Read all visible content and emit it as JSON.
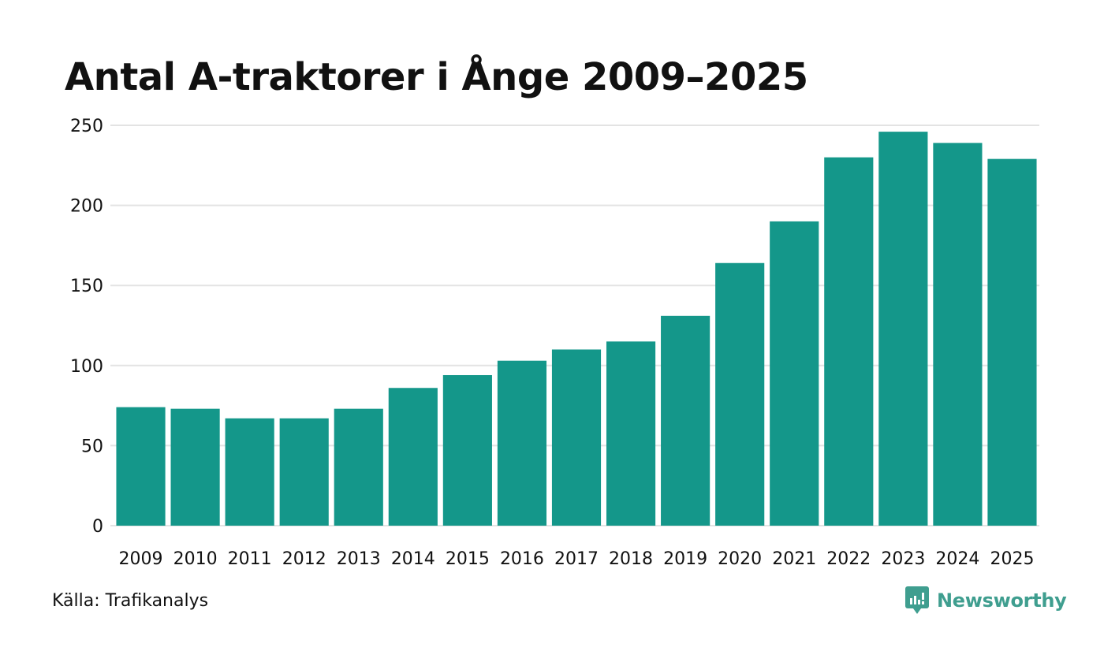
{
  "chart_data": {
    "type": "bar",
    "title": "Antal A-traktorer i Ånge 2009–2025",
    "categories": [
      "2009",
      "2010",
      "2011",
      "2012",
      "2013",
      "2014",
      "2015",
      "2016",
      "2017",
      "2018",
      "2019",
      "2020",
      "2021",
      "2022",
      "2023",
      "2024",
      "2025"
    ],
    "values": [
      74,
      73,
      67,
      67,
      73,
      86,
      94,
      103,
      110,
      115,
      131,
      164,
      190,
      230,
      246,
      239,
      229
    ],
    "xlabel": "",
    "ylabel": "",
    "ylim": [
      0,
      250
    ],
    "yticks": [
      0,
      50,
      100,
      150,
      200,
      250
    ],
    "grid": true,
    "bar_color": "#14978a",
    "grid_color": "#e3e3e3"
  },
  "footer": {
    "source": "Källa: Trafikanalys",
    "brand": "Newsworthy",
    "brand_icon": "newsworthy-logo-icon",
    "brand_color": "#3f9e8f"
  }
}
